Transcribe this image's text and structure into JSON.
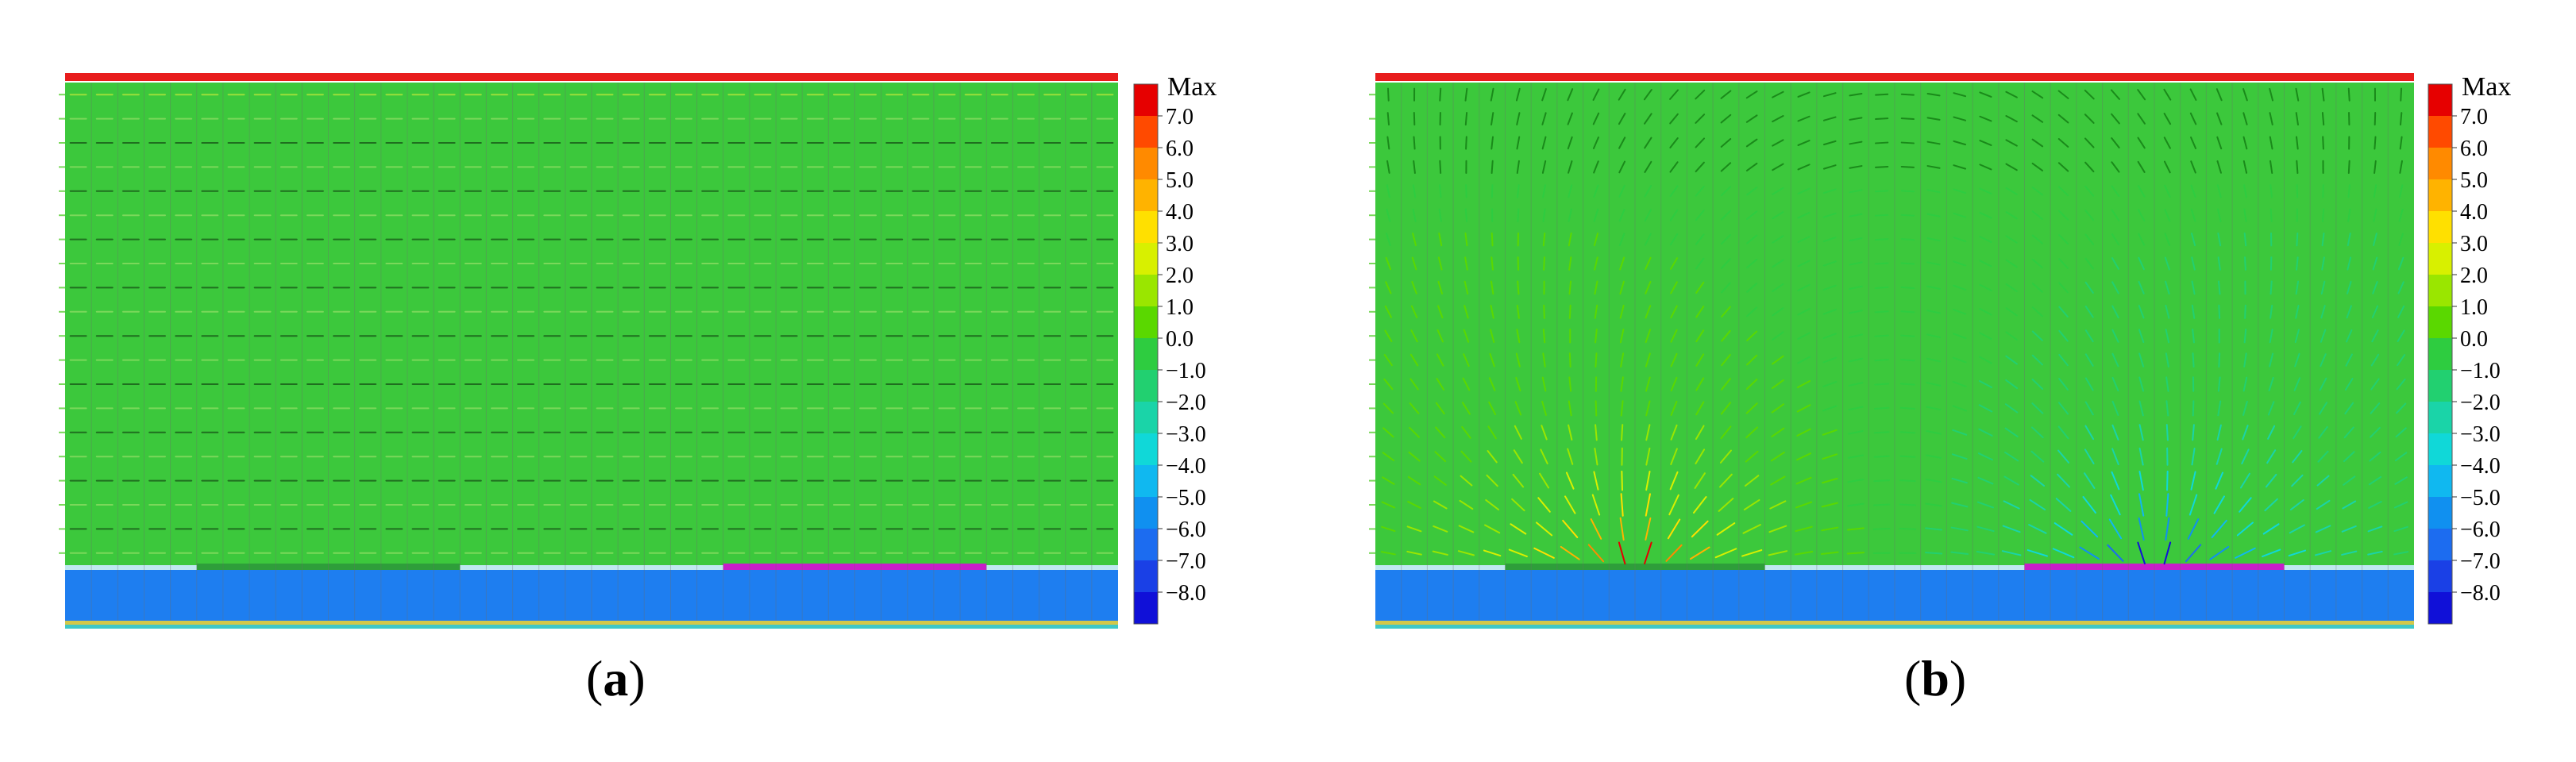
{
  "panels": [
    {
      "id": "a",
      "caption": "a",
      "field": "uniform",
      "colorbar": {
        "title": "Max",
        "labels": [
          "7.0",
          "6.0",
          "5.0",
          "4.0",
          "3.0",
          "2.0",
          "1.0",
          "0.0",
          "−1.0",
          "−2.0",
          "−3.0",
          "−4.0",
          "−5.0",
          "−6.0",
          "−7.0",
          "−8.0"
        ]
      }
    },
    {
      "id": "b",
      "caption": "b",
      "field": "dipole",
      "colorbar": {
        "title": "Max",
        "labels": [
          "7.0",
          "6.0",
          "5.0",
          "4.0",
          "3.0",
          "2.0",
          "1.0",
          "0.0",
          "−1.0",
          "−2.0",
          "−3.0",
          "−4.0",
          "−5.0",
          "−6.0",
          "−7.0",
          "−8.0"
        ]
      }
    }
  ],
  "colors": {
    "field": "#3cc83c",
    "substrate": "#1e7ef0",
    "top_electrode": "#e81c1c",
    "dark_electrode": "#2e9e3a",
    "magenta_electrode": "#c81ec8",
    "base_yellow": "#d2c84a",
    "grid_line": "#6e6e6e"
  }
}
